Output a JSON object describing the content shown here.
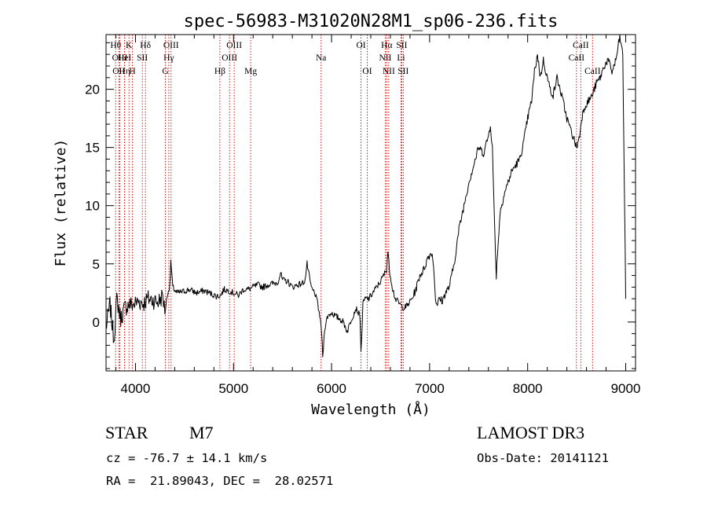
{
  "chart_data": {
    "type": "line",
    "title": "spec-56983-M31020N28M1_sp06-236.fits",
    "xlabel": "Wavelength (Å)",
    "ylabel": "Flux (relative)",
    "xlim": [
      3700,
      9100
    ],
    "ylim": [
      -4.2,
      24.7
    ],
    "xticks": [
      4000,
      5000,
      6000,
      7000,
      8000,
      9000
    ],
    "yticks": [
      0,
      5,
      10,
      15,
      20
    ],
    "grid": false,
    "series": [
      {
        "name": "spectrum",
        "x": [
          3700,
          3740,
          3780,
          3810,
          3850,
          3890,
          3930,
          3980,
          4030,
          4080,
          4130,
          4180,
          4230,
          4280,
          4300,
          4330,
          4350,
          4360,
          4380,
          4420,
          4480,
          4550,
          4620,
          4700,
          4780,
          4830,
          4870,
          4900,
          4950,
          5000,
          5050,
          5100,
          5150,
          5200,
          5250,
          5300,
          5350,
          5400,
          5450,
          5480,
          5500,
          5550,
          5600,
          5650,
          5700,
          5730,
          5750,
          5780,
          5800,
          5830,
          5860,
          5880,
          5900,
          5910,
          5930,
          5960,
          6000,
          6040,
          6080,
          6120,
          6160,
          6200,
          6250,
          6290,
          6300,
          6320,
          6340,
          6380,
          6420,
          6460,
          6500,
          6530,
          6560,
          6575,
          6590,
          6620,
          6650,
          6700,
          6740,
          6780,
          6820,
          6860,
          6900,
          6940,
          6980,
          7020,
          7040,
          7060,
          7080,
          7100,
          7130,
          7160,
          7200,
          7250,
          7300,
          7350,
          7400,
          7450,
          7500,
          7550,
          7600,
          7620,
          7640,
          7660,
          7680,
          7700,
          7720,
          7760,
          7800,
          7840,
          7880,
          7920,
          7960,
          8000,
          8040,
          8070,
          8100,
          8130,
          8160,
          8200,
          8230,
          8260,
          8300,
          8330,
          8360,
          8400,
          8440,
          8480,
          8500,
          8530,
          8550,
          8580,
          8620,
          8660,
          8700,
          8740,
          8780,
          8820,
          8860,
          8900,
          8940,
          8970,
          9000
        ],
        "y": [
          -0.5,
          1.5,
          -1.5,
          2.0,
          0.3,
          1.2,
          1.5,
          1.5,
          1.8,
          1.6,
          2.0,
          1.9,
          1.7,
          2.3,
          0.8,
          2.6,
          3.0,
          5.3,
          3.0,
          2.5,
          2.6,
          2.8,
          2.5,
          2.7,
          2.4,
          2.2,
          2.3,
          2.8,
          2.7,
          2.5,
          2.3,
          2.8,
          2.8,
          3.0,
          3.2,
          3.0,
          3.2,
          3.3,
          3.4,
          4.2,
          3.6,
          3.5,
          3.0,
          3.2,
          3.3,
          3.6,
          5.0,
          3.5,
          2.8,
          2.5,
          1.5,
          0.5,
          -1.0,
          -3.0,
          -0.5,
          0.5,
          0.8,
          0.5,
          0.3,
          0.0,
          -0.8,
          0.2,
          1.2,
          0.5,
          -2.7,
          1.5,
          2.0,
          2.0,
          2.5,
          3.0,
          3.5,
          4.0,
          4.5,
          6.1,
          4.5,
          3.0,
          2.0,
          1.5,
          1.2,
          1.5,
          2.0,
          2.8,
          4.0,
          4.5,
          5.5,
          6.0,
          5.0,
          2.0,
          1.5,
          2.0,
          1.8,
          2.5,
          3.0,
          5.0,
          8.0,
          10.0,
          12.0,
          13.5,
          15.0,
          14.5,
          16.0,
          17.0,
          15.0,
          9.0,
          4.0,
          7.0,
          9.5,
          11.0,
          12.0,
          13.0,
          13.5,
          14.0,
          15.5,
          17.5,
          19.0,
          21.5,
          23.0,
          21.0,
          22.5,
          21.0,
          20.0,
          19.5,
          21.0,
          20.0,
          19.0,
          17.5,
          16.5,
          15.5,
          15.0,
          16.0,
          17.5,
          18.5,
          19.0,
          19.5,
          20.5,
          21.0,
          22.0,
          22.5,
          21.5,
          22.5,
          24.5,
          23.0,
          2.0
        ]
      }
    ],
    "lines": [
      {
        "name": "Hθ",
        "wave": 3798,
        "row": 1
      },
      {
        "name": "OIII",
        "wave": 3840,
        "row": 2
      },
      {
        "name": "OII",
        "wave": 3830,
        "row": 3
      },
      {
        "name": "HeI",
        "wave": 3889,
        "row": 2
      },
      {
        "name": "Hη",
        "wave": 3890,
        "row": 3
      },
      {
        "name": "K",
        "wave": 3934,
        "row": 1
      },
      {
        "name": "H",
        "wave": 3969,
        "row": 3
      },
      {
        "name": "SII",
        "wave": 4070,
        "row": 2
      },
      {
        "name": "Hδ",
        "wave": 4102,
        "row": 1
      },
      {
        "name": "OIII",
        "wave": 4363,
        "row": 1
      },
      {
        "name": "Hγ",
        "wave": 4340,
        "row": 2
      },
      {
        "name": "G",
        "wave": 4305,
        "row": 3
      },
      {
        "name": "Hβ",
        "wave": 4861,
        "row": 3
      },
      {
        "name": "OIII",
        "wave": 5007,
        "row": 1
      },
      {
        "name": "OIII",
        "wave": 4959,
        "row": 2
      },
      {
        "name": "Mg",
        "wave": 5175,
        "row": 3
      },
      {
        "name": "Na",
        "wave": 5893,
        "row": 2
      },
      {
        "name": "OI",
        "wave": 6300,
        "row": 1
      },
      {
        "name": "OI",
        "wave": 6364,
        "row": 3
      },
      {
        "name": "Hα",
        "wave": 6563,
        "row": 1
      },
      {
        "name": "NII",
        "wave": 6548,
        "row": 2
      },
      {
        "name": "NII",
        "wave": 6583,
        "row": 3
      },
      {
        "name": "SII",
        "wave": 6716,
        "row": 1
      },
      {
        "name": "Li",
        "wave": 6708,
        "row": 2
      },
      {
        "name": "SII",
        "wave": 6731,
        "row": 3
      },
      {
        "name": "CaII",
        "wave": 8542,
        "row": 1
      },
      {
        "name": "CaII",
        "wave": 8498,
        "row": 2
      },
      {
        "name": "CaII",
        "wave": 8662,
        "row": 3
      }
    ],
    "line_marker_color": "#cc0000",
    "spectrum_color": "#000000"
  },
  "info": {
    "class": "STAR",
    "subclass": "M7",
    "survey": "LAMOST DR3",
    "cz": "cz = -76.7 ± 14.1 km/s",
    "obs_date": "Obs-Date: 20141121",
    "coords": "RA =  21.89043, DEC =  28.02571"
  }
}
